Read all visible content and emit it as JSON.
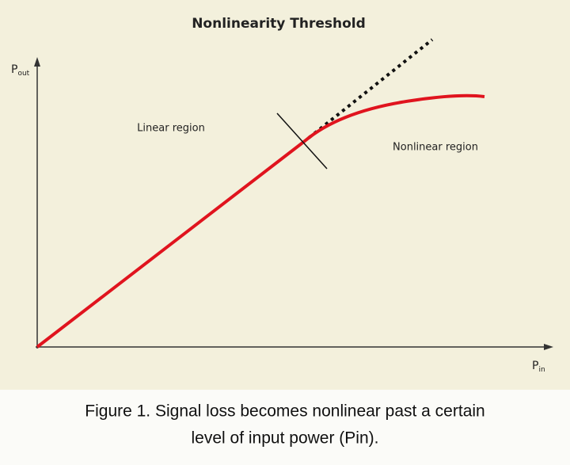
{
  "diagram": {
    "title": "Nonlinearity Threshold",
    "y_axis_label": {
      "main": "P",
      "sub": "out"
    },
    "x_axis_label": {
      "main": "P",
      "sub": "in"
    },
    "regions": [
      "Linear region",
      "Nonlinear region"
    ]
  },
  "caption": [
    "Figure 1. Signal loss becomes nonlinear past a certain",
    "level of input power (Pin)."
  ]
}
